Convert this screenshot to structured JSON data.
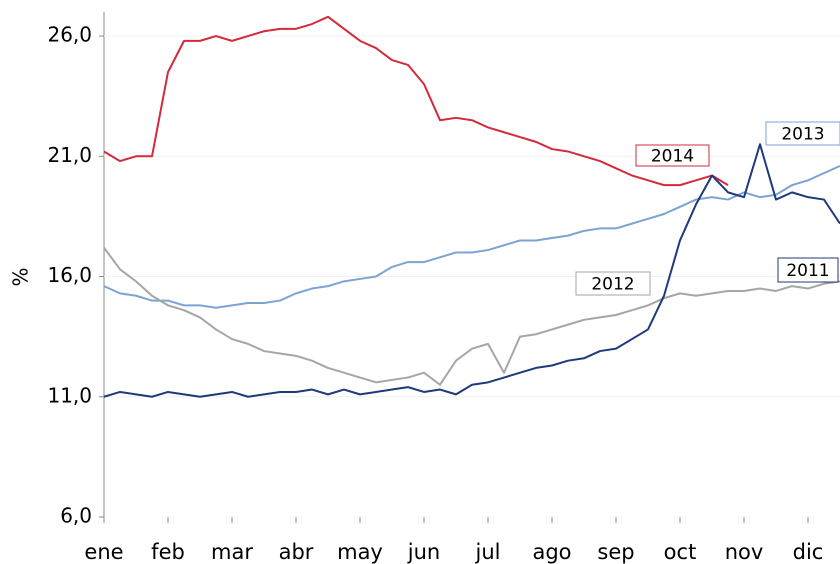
{
  "chart_data": {
    "type": "line",
    "y_label": "%",
    "categories": [
      "ene",
      null,
      null,
      null,
      "feb",
      null,
      null,
      null,
      "mar",
      null,
      null,
      null,
      "abr",
      null,
      null,
      null,
      "may",
      null,
      null,
      null,
      "jun",
      null,
      null,
      null,
      "jul",
      null,
      null,
      null,
      "ago",
      null,
      null,
      null,
      "sep",
      null,
      null,
      null,
      "oct",
      null,
      null,
      null,
      "nov",
      null,
      null,
      null,
      "dic",
      null,
      null
    ],
    "ylim": [
      6,
      27
    ],
    "yticks": [
      {
        "value": 6,
        "label": "6,0"
      },
      {
        "value": 11,
        "label": "11,0"
      },
      {
        "value": 16,
        "label": "16,0"
      },
      {
        "value": 21,
        "label": "21,0"
      },
      {
        "value": 26,
        "label": "26,0"
      }
    ],
    "grid": true,
    "series": [
      {
        "name": "2014",
        "color": "#d42a3c",
        "values": [
          21.2,
          20.8,
          21.0,
          21.0,
          24.5,
          25.8,
          25.8,
          26.0,
          25.8,
          26.0,
          26.2,
          26.3,
          26.3,
          26.5,
          26.8,
          26.3,
          25.8,
          25.5,
          25.0,
          24.8,
          24.0,
          22.5,
          22.6,
          22.5,
          22.2,
          22.0,
          21.8,
          21.6,
          21.3,
          21.2,
          21.0,
          20.8,
          20.5,
          20.2,
          20.0,
          19.8,
          19.8,
          20.0,
          20.2,
          19.8,
          null,
          null,
          null,
          null,
          null,
          null,
          null
        ]
      },
      {
        "name": "2013",
        "color": "#7ba4d4",
        "values": [
          15.6,
          15.3,
          15.2,
          15.0,
          15.0,
          14.8,
          14.8,
          14.7,
          14.8,
          14.9,
          14.9,
          15.0,
          15.3,
          15.5,
          15.6,
          15.8,
          15.9,
          16.0,
          16.4,
          16.6,
          16.6,
          16.8,
          17.0,
          17.0,
          17.1,
          17.3,
          17.5,
          17.5,
          17.6,
          17.7,
          17.9,
          18.0,
          18.0,
          18.2,
          18.4,
          18.6,
          18.9,
          19.2,
          19.3,
          19.2,
          19.5,
          19.3,
          19.4,
          19.8,
          20.0,
          20.3,
          20.6
        ]
      },
      {
        "name": "2012",
        "color": "#a6a6a6",
        "values": [
          17.2,
          16.3,
          15.8,
          15.2,
          14.8,
          14.6,
          14.3,
          13.8,
          13.4,
          13.2,
          12.9,
          12.8,
          12.7,
          12.5,
          12.2,
          12.0,
          11.8,
          11.6,
          11.7,
          11.8,
          12.0,
          11.5,
          12.5,
          13.0,
          13.2,
          12.0,
          13.5,
          13.6,
          13.8,
          14.0,
          14.2,
          14.3,
          14.4,
          14.6,
          14.8,
          15.1,
          15.3,
          15.2,
          15.3,
          15.4,
          15.4,
          15.5,
          15.4,
          15.6,
          15.5,
          15.7,
          15.8
        ]
      },
      {
        "name": "2011",
        "color": "#1f3a7a",
        "values": [
          11.0,
          11.2,
          11.1,
          11.0,
          11.2,
          11.1,
          11.0,
          11.1,
          11.2,
          11.0,
          11.1,
          11.2,
          11.2,
          11.3,
          11.1,
          11.3,
          11.1,
          11.2,
          11.3,
          11.4,
          11.2,
          11.3,
          11.1,
          11.5,
          11.6,
          11.8,
          12.0,
          12.2,
          12.3,
          12.5,
          12.6,
          12.9,
          13.0,
          13.4,
          13.8,
          15.2,
          17.5,
          19.0,
          20.2,
          19.5,
          19.3,
          21.5,
          19.2,
          19.5,
          19.3,
          19.2,
          18.2
        ]
      }
    ]
  }
}
